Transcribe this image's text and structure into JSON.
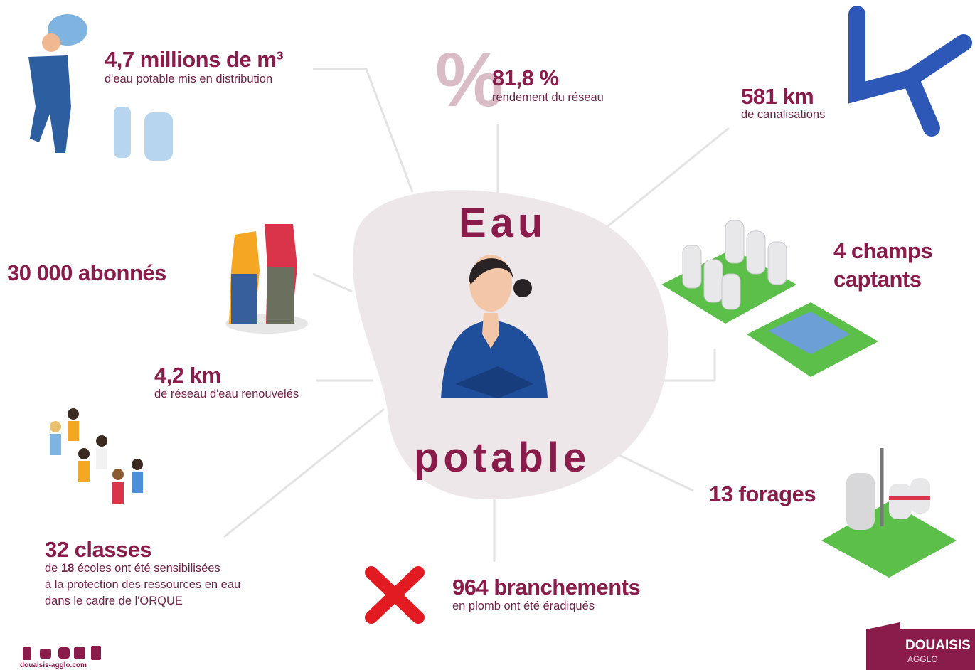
{
  "center": {
    "line1": "Eau",
    "line2": "potable"
  },
  "stats": {
    "volume": {
      "headline": "4,7 millions de m³",
      "text": "d'eau potable mis en distribution"
    },
    "rendement": {
      "symbol": "%",
      "headline": "81,8 %",
      "text": "rendement du réseau"
    },
    "canalisations": {
      "headline": "581 km",
      "text": "de canalisations"
    },
    "abonnes": {
      "headline": "30 000 abonnés"
    },
    "champs": {
      "line1": "4 champs",
      "line2": "captants"
    },
    "reseau": {
      "headline": "4,2 km",
      "text": "de réseau d'eau renouvelés"
    },
    "forages": {
      "headline": "13 forages"
    },
    "classes": {
      "headline": "32 classes",
      "pre": "de ",
      "bold": "18",
      "post": " écoles ont été sensibilisées",
      "line2": "à la protection des ressources en eau",
      "line3": "dans le cadre de l'ORQUE"
    },
    "branchements": {
      "headline": "964 branchements",
      "text": "en plomb ont été éradiqués"
    }
  },
  "footer": {
    "website": "douaisis-agglo.com",
    "logo": "DOUAISIS",
    "logo_sub": "AGGLO"
  }
}
